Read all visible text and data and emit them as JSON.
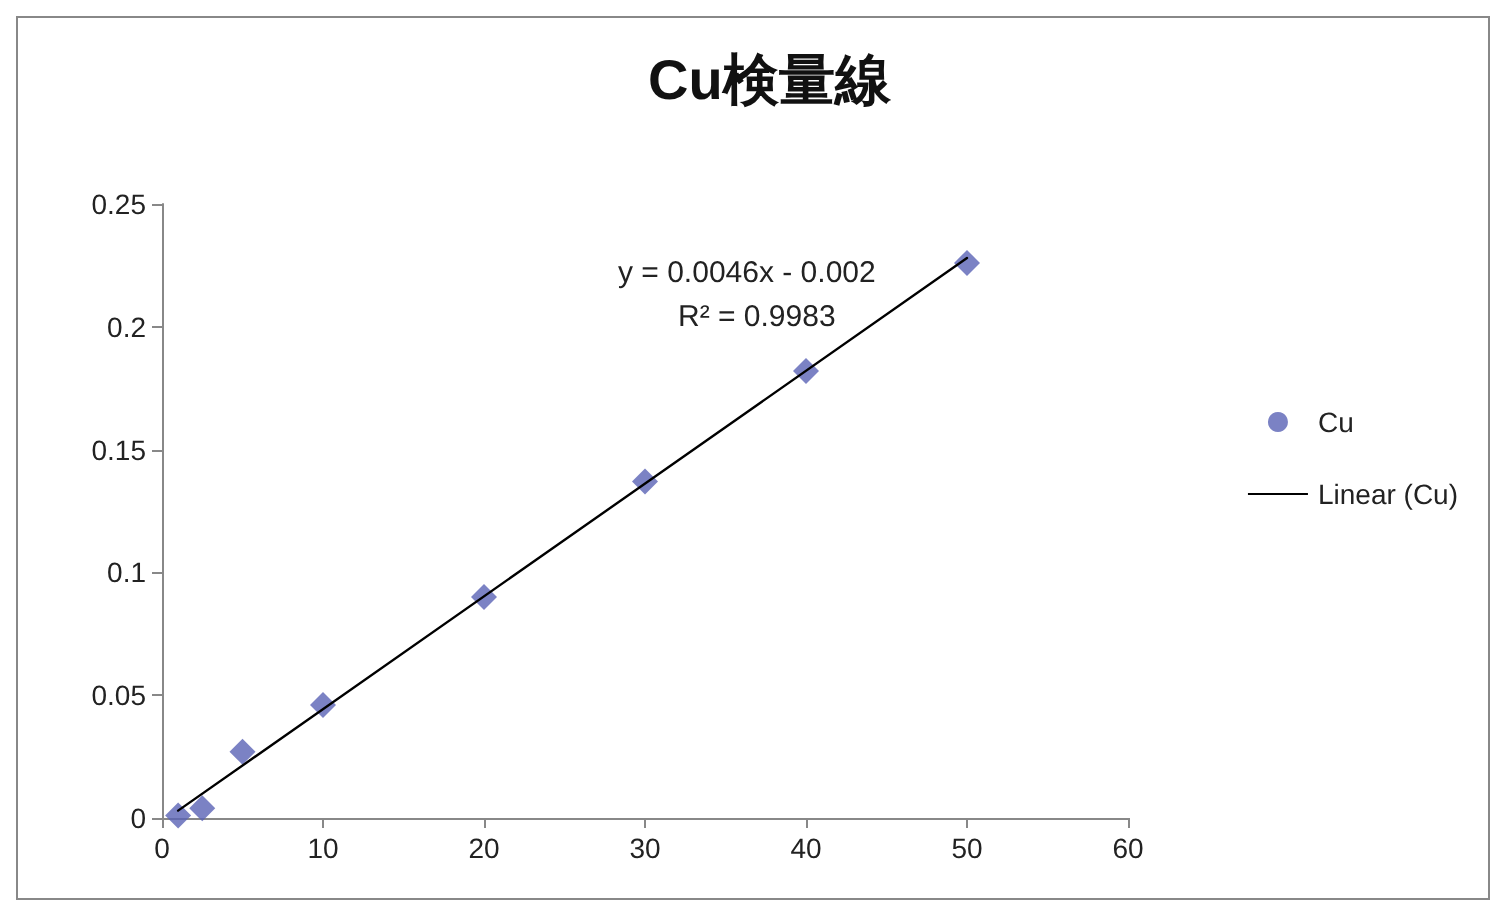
{
  "chart_data": {
    "type": "scatter",
    "title": "Cu検量線",
    "series": [
      {
        "name": "Cu",
        "color": "#5a63b5",
        "marker": "diamond",
        "x": [
          1,
          2.5,
          5,
          10,
          20,
          30,
          40,
          50
        ],
        "values": [
          0.001,
          0.004,
          0.027,
          0.046,
          0.09,
          0.137,
          0.182,
          0.226
        ]
      },
      {
        "name": "Linear (Cu)",
        "type": "line",
        "color": "#000000",
        "marker": "none",
        "line_style": "solid",
        "x": [
          1,
          50
        ],
        "values": [
          0.003,
          0.228
        ]
      }
    ],
    "xlim": [
      0,
      60
    ],
    "xticks": [
      0,
      10,
      20,
      30,
      40,
      50,
      60
    ],
    "ylim": [
      0,
      0.25
    ],
    "yticks": [
      0,
      0.05,
      0.1,
      0.15,
      0.2,
      0.25
    ],
    "grid": false,
    "legend": "right",
    "annotations": [
      "y = 0.0046x - 0.002",
      "R² = 0.9983"
    ]
  }
}
